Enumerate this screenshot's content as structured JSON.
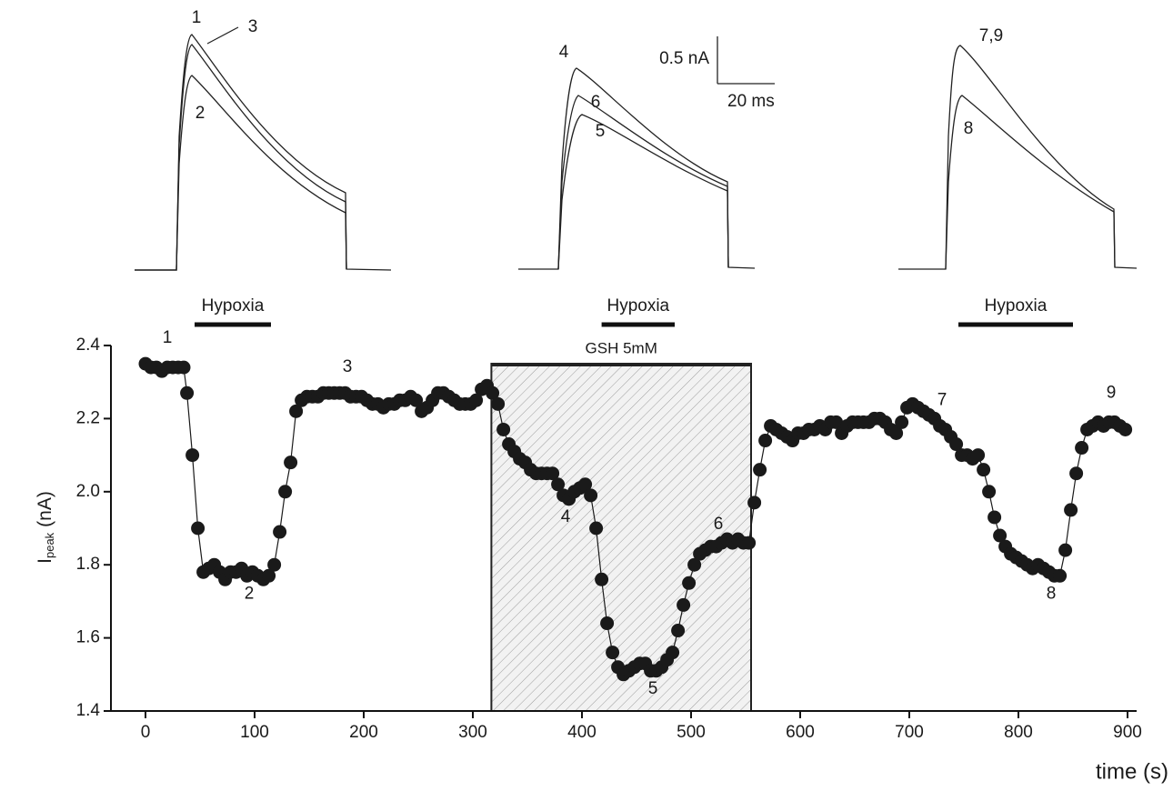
{
  "chart_data": {
    "type": "line",
    "xlabel": "time (s)",
    "ylabel": "I",
    "ylabel_sub": "peak",
    "ylabel_unit": "(nA)",
    "xlim": [
      0,
      900
    ],
    "ylim": [
      1.4,
      2.4
    ],
    "xticks": [
      0,
      100,
      200,
      300,
      400,
      500,
      600,
      700,
      800,
      900
    ],
    "yticks": [
      1.4,
      1.6,
      1.8,
      {
        "value": 2,
        "label": "2.0"
      },
      2.2,
      2.4
    ],
    "color": "#1a1a1a",
    "x": [
      0,
      5,
      10,
      15,
      20,
      25,
      30,
      35,
      38,
      43,
      48,
      53,
      58,
      63,
      68,
      73,
      78,
      83,
      88,
      93,
      98,
      103,
      108,
      113,
      118,
      123,
      128,
      133,
      138,
      143,
      148,
      153,
      158,
      163,
      168,
      173,
      178,
      183,
      188,
      193,
      198,
      203,
      208,
      213,
      218,
      223,
      228,
      233,
      238,
      243,
      248,
      253,
      258,
      263,
      268,
      273,
      278,
      283,
      288,
      293,
      298,
      303,
      308,
      313,
      318,
      323,
      328,
      333,
      338,
      343,
      348,
      353,
      358,
      363,
      368,
      373,
      378,
      383,
      388,
      393,
      398,
      403,
      408,
      413,
      418,
      423,
      428,
      433,
      438,
      443,
      448,
      453,
      458,
      463,
      468,
      473,
      478,
      483,
      488,
      493,
      498,
      503,
      508,
      513,
      518,
      523,
      528,
      533,
      538,
      543,
      548,
      553,
      558,
      563,
      568,
      573,
      578,
      583,
      588,
      593,
      598,
      603,
      608,
      613,
      618,
      623,
      628,
      633,
      638,
      643,
      648,
      653,
      658,
      663,
      668,
      673,
      678,
      683,
      688,
      693,
      698,
      703,
      708,
      713,
      718,
      723,
      728,
      733,
      738,
      743,
      748,
      753,
      758,
      763,
      768,
      773,
      778,
      783,
      788,
      793,
      798,
      803,
      808,
      813,
      818,
      823,
      828,
      833,
      838,
      843,
      848,
      853,
      858,
      863,
      868,
      873,
      878,
      883,
      888,
      893,
      898
    ],
    "values": [
      2.35,
      2.34,
      2.34,
      2.33,
      2.34,
      2.34,
      2.34,
      2.34,
      2.27,
      2.1,
      1.9,
      1.78,
      1.79,
      1.8,
      1.78,
      1.76,
      1.78,
      1.78,
      1.79,
      1.77,
      1.78,
      1.77,
      1.76,
      1.77,
      1.8,
      1.89,
      2.0,
      2.08,
      2.22,
      2.25,
      2.26,
      2.26,
      2.26,
      2.27,
      2.27,
      2.27,
      2.27,
      2.27,
      2.26,
      2.26,
      2.26,
      2.25,
      2.24,
      2.24,
      2.23,
      2.24,
      2.24,
      2.25,
      2.25,
      2.26,
      2.25,
      2.22,
      2.23,
      2.25,
      2.27,
      2.27,
      2.26,
      2.25,
      2.24,
      2.24,
      2.24,
      2.25,
      2.28,
      2.29,
      2.27,
      2.24,
      2.17,
      2.13,
      2.11,
      2.09,
      2.08,
      2.06,
      2.05,
      2.05,
      2.05,
      2.05,
      2.02,
      1.99,
      1.98,
      2.0,
      2.01,
      2.02,
      1.99,
      1.9,
      1.76,
      1.64,
      1.56,
      1.52,
      1.5,
      1.51,
      1.52,
      1.53,
      1.53,
      1.51,
      1.51,
      1.52,
      1.54,
      1.56,
      1.62,
      1.69,
      1.75,
      1.8,
      1.83,
      1.84,
      1.85,
      1.85,
      1.86,
      1.87,
      1.86,
      1.87,
      1.86,
      1.86,
      1.97,
      2.06,
      2.14,
      2.18,
      2.17,
      2.16,
      2.15,
      2.14,
      2.16,
      2.16,
      2.17,
      2.17,
      2.18,
      2.17,
      2.19,
      2.19,
      2.16,
      2.18,
      2.19,
      2.19,
      2.19,
      2.19,
      2.2,
      2.2,
      2.19,
      2.17,
      2.16,
      2.19,
      2.23,
      2.24,
      2.23,
      2.22,
      2.21,
      2.2,
      2.18,
      2.17,
      2.15,
      2.13,
      2.1,
      2.1,
      2.09,
      2.1,
      2.06,
      2.0,
      1.93,
      1.88,
      1.85,
      1.83,
      1.82,
      1.81,
      1.8,
      1.79,
      1.8,
      1.79,
      1.78,
      1.77,
      1.77,
      1.84,
      1.95,
      2.05,
      2.12,
      2.17,
      2.18,
      2.19,
      2.18,
      2.19,
      2.19,
      2.18,
      2.17
    ],
    "annotations": [
      {
        "text": "1",
        "x": 20,
        "y": 2.42
      },
      {
        "text": "2",
        "x": 95,
        "y": 1.72
      },
      {
        "text": "3",
        "x": 185,
        "y": 2.34
      },
      {
        "text": "4",
        "x": 385,
        "y": 1.93
      },
      {
        "text": "5",
        "x": 465,
        "y": 1.46
      },
      {
        "text": "6",
        "x": 525,
        "y": 1.91
      },
      {
        "text": "7",
        "x": 730,
        "y": 2.25
      },
      {
        "text": "8",
        "x": 830,
        "y": 1.72
      },
      {
        "text": "9",
        "x": 885,
        "y": 2.27
      }
    ],
    "hypoxia": [
      {
        "label": "Hypoxia",
        "x": [
          45,
          115
        ]
      },
      {
        "label": "Hypoxia",
        "x": [
          418,
          485
        ]
      },
      {
        "label": "Hypoxia",
        "x": [
          745,
          850
        ]
      }
    ],
    "region": {
      "label": "GSH 5mM",
      "x": [
        317,
        555
      ]
    },
    "traces": {
      "panel_1": [
        "1",
        "3",
        "2"
      ],
      "panel_2": [
        "4",
        "6",
        "5"
      ],
      "panel_3": [
        "7,9",
        "8"
      ],
      "scale_current": "0.5 nA",
      "scale_time": "20 ms"
    }
  }
}
